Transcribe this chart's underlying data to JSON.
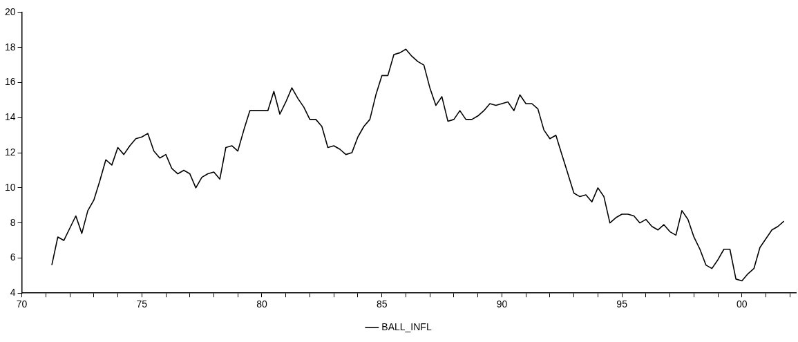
{
  "chart_data": {
    "type": "line",
    "x": [
      1971.25,
      1971.5,
      1971.75,
      1972,
      1972.25,
      1972.5,
      1972.75,
      1973,
      1973.25,
      1973.5,
      1973.75,
      1974,
      1974.25,
      1974.5,
      1974.75,
      1975,
      1975.25,
      1975.5,
      1975.75,
      1976,
      1976.25,
      1976.5,
      1976.75,
      1977,
      1977.25,
      1977.5,
      1977.75,
      1978,
      1978.25,
      1978.5,
      1978.75,
      1979,
      1979.25,
      1979.5,
      1979.75,
      1980,
      1980.25,
      1980.5,
      1980.75,
      1981,
      1981.25,
      1981.5,
      1981.75,
      1982,
      1982.25,
      1982.5,
      1982.75,
      1983,
      1983.25,
      1983.5,
      1983.75,
      1984,
      1984.25,
      1984.5,
      1984.75,
      1985,
      1985.25,
      1985.5,
      1985.75,
      1986,
      1986.25,
      1986.5,
      1986.75,
      1987,
      1987.25,
      1987.5,
      1987.75,
      1988,
      1988.25,
      1988.5,
      1988.75,
      1989,
      1989.25,
      1989.5,
      1989.75,
      1990,
      1990.25,
      1990.5,
      1990.75,
      1991,
      1991.25,
      1991.5,
      1991.75,
      1992,
      1992.25,
      1992.5,
      1992.75,
      1993,
      1993.25,
      1993.5,
      1993.75,
      1994,
      1994.25,
      1994.5,
      1994.75,
      1995,
      1995.25,
      1995.5,
      1995.75,
      1996,
      1996.25,
      1996.5,
      1996.75,
      1997,
      1997.25,
      1997.5,
      1997.75,
      1998,
      1998.25,
      1998.5,
      1998.75,
      1999,
      1999.25,
      1999.5,
      1999.75,
      2000,
      2000.25,
      2000.5,
      2000.75,
      2001,
      2001.25,
      2001.5,
      2001.75
    ],
    "series": [
      {
        "name": "BALL_INFL",
        "color": "#000000",
        "values": [
          5.6,
          7.2,
          7.0,
          7.7,
          8.4,
          7.4,
          8.7,
          9.3,
          10.4,
          11.6,
          11.3,
          12.3,
          11.9,
          12.4,
          12.8,
          12.9,
          13.1,
          12.1,
          11.7,
          11.9,
          11.1,
          10.8,
          11.0,
          10.8,
          10.0,
          10.6,
          10.8,
          10.9,
          10.5,
          12.3,
          12.4,
          12.1,
          13.3,
          14.4,
          14.4,
          14.4,
          14.4,
          15.5,
          14.2,
          14.9,
          15.7,
          15.1,
          14.6,
          13.9,
          13.9,
          13.5,
          12.3,
          12.4,
          12.2,
          11.9,
          12.0,
          12.9,
          13.5,
          13.9,
          15.3,
          16.4,
          16.4,
          17.6,
          17.7,
          17.9,
          17.5,
          17.2,
          17.0,
          15.7,
          14.7,
          15.2,
          13.8,
          13.9,
          14.4,
          13.9,
          13.9,
          14.1,
          14.4,
          14.8,
          14.7,
          14.8,
          14.9,
          14.4,
          15.3,
          14.8,
          14.8,
          14.5,
          13.3,
          12.8,
          13.0,
          11.9,
          10.8,
          9.7,
          9.5,
          9.6,
          9.2,
          10.0,
          9.5,
          8.0,
          8.3,
          8.5,
          8.5,
          8.4,
          8.0,
          8.2,
          7.8,
          7.6,
          7.9,
          7.5,
          7.3,
          8.7,
          8.2,
          7.2,
          6.5,
          5.6,
          5.4,
          5.9,
          6.5,
          6.5,
          4.8,
          4.7,
          5.1,
          5.4,
          6.6,
          7.1,
          7.6,
          7.8,
          8.1
        ]
      }
    ],
    "xlim": [
      1970,
      2002.25
    ],
    "xticks": [
      {
        "value": 1970,
        "label": "70"
      },
      {
        "value": 1971,
        "label": null
      },
      {
        "value": 1972,
        "label": null
      },
      {
        "value": 1973,
        "label": null
      },
      {
        "value": 1974,
        "label": null
      },
      {
        "value": 1975,
        "label": "75"
      },
      {
        "value": 1976,
        "label": null
      },
      {
        "value": 1977,
        "label": null
      },
      {
        "value": 1978,
        "label": null
      },
      {
        "value": 1979,
        "label": null
      },
      {
        "value": 1980,
        "label": "80"
      },
      {
        "value": 1981,
        "label": null
      },
      {
        "value": 1982,
        "label": null
      },
      {
        "value": 1983,
        "label": null
      },
      {
        "value": 1984,
        "label": null
      },
      {
        "value": 1985,
        "label": "85"
      },
      {
        "value": 1986,
        "label": null
      },
      {
        "value": 1987,
        "label": null
      },
      {
        "value": 1988,
        "label": null
      },
      {
        "value": 1989,
        "label": null
      },
      {
        "value": 1990,
        "label": "90"
      },
      {
        "value": 1991,
        "label": null
      },
      {
        "value": 1992,
        "label": null
      },
      {
        "value": 1993,
        "label": null
      },
      {
        "value": 1994,
        "label": null
      },
      {
        "value": 1995,
        "label": "95"
      },
      {
        "value": 1996,
        "label": null
      },
      {
        "value": 1997,
        "label": null
      },
      {
        "value": 1998,
        "label": null
      },
      {
        "value": 1999,
        "label": null
      },
      {
        "value": 2000,
        "label": "00"
      },
      {
        "value": 2001,
        "label": null
      },
      {
        "value": 2002,
        "label": null
      }
    ],
    "ylim": [
      4,
      20
    ],
    "yticks": [
      4,
      6,
      8,
      10,
      12,
      14,
      16,
      18,
      20
    ],
    "legend": "bottom",
    "marker": "none",
    "line_style": "solid"
  }
}
